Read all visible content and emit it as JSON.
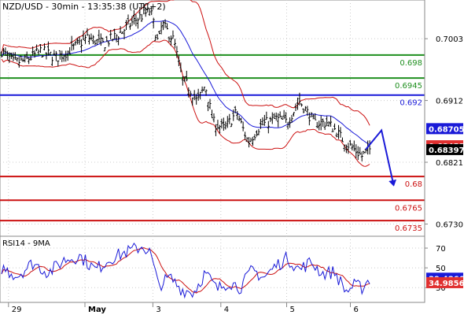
{
  "chart_data": [
    {
      "type": "candlestick",
      "title": "NZD/USD - 30min - 13:35:38 (UTC+2)",
      "ylim": [
        0.6712,
        0.706
      ],
      "yticks": [
        {
          "label": "0.7003",
          "value": 0.7003
        },
        {
          "label": "0.6912",
          "value": 0.6912
        },
        {
          "label": "0.6821",
          "value": 0.6821
        },
        {
          "label": "0.6730",
          "value": 0.673
        }
      ],
      "xticks": [
        {
          "label": "29",
          "pos": 0.02
        },
        {
          "label": "May",
          "pos": 0.2
        },
        {
          "label": "3",
          "pos": 0.36
        },
        {
          "label": "4",
          "pos": 0.52
        },
        {
          "label": "5",
          "pos": 0.675
        },
        {
          "label": "6",
          "pos": 0.825
        }
      ],
      "resistance_levels": [
        {
          "label": "0.698",
          "value": 0.6979,
          "color": "#1f8f1f"
        },
        {
          "label": "0.6945",
          "value": 0.6945,
          "color": "#1f8f1f"
        },
        {
          "label": "0.692",
          "value": 0.692,
          "color": "#1a1ad8"
        }
      ],
      "support_levels": [
        {
          "label": "0.68",
          "value": 0.68,
          "color": "#cc1111"
        },
        {
          "label": "0.6765",
          "value": 0.6765,
          "color": "#cc1111"
        },
        {
          "label": "0.6735",
          "value": 0.6735,
          "color": "#cc1111"
        }
      ],
      "price_badges": [
        {
          "label": "0.68705",
          "value": 0.68705,
          "bg": "#1a1ad8"
        },
        {
          "label": "0.68453",
          "value": 0.68453,
          "bg": "#e03030"
        },
        {
          "label": "0.68397",
          "value": 0.68397,
          "bg": "#000000"
        }
      ],
      "close_keypoints": [
        {
          "t": 0.0,
          "v": 0.6985
        },
        {
          "t": 0.03,
          "v": 0.6968
        },
        {
          "t": 0.06,
          "v": 0.697
        },
        {
          "t": 0.1,
          "v": 0.6985
        },
        {
          "t": 0.14,
          "v": 0.6975
        },
        {
          "t": 0.18,
          "v": 0.6988
        },
        {
          "t": 0.22,
          "v": 0.7005
        },
        {
          "t": 0.26,
          "v": 0.6995
        },
        {
          "t": 0.3,
          "v": 0.701
        },
        {
          "t": 0.34,
          "v": 0.703
        },
        {
          "t": 0.38,
          "v": 0.7045
        },
        {
          "t": 0.4,
          "v": 0.6995
        },
        {
          "t": 0.41,
          "v": 0.7025
        },
        {
          "t": 0.44,
          "v": 0.7
        },
        {
          "t": 0.46,
          "v": 0.6945
        },
        {
          "t": 0.48,
          "v": 0.693
        },
        {
          "t": 0.5,
          "v": 0.691
        },
        {
          "t": 0.52,
          "v": 0.6935
        },
        {
          "t": 0.54,
          "v": 0.688
        },
        {
          "t": 0.57,
          "v": 0.687
        },
        {
          "t": 0.6,
          "v": 0.6895
        },
        {
          "t": 0.63,
          "v": 0.685
        },
        {
          "t": 0.66,
          "v": 0.6875
        },
        {
          "t": 0.7,
          "v": 0.6885
        },
        {
          "t": 0.73,
          "v": 0.688
        },
        {
          "t": 0.76,
          "v": 0.6912
        },
        {
          "t": 0.78,
          "v": 0.6895
        },
        {
          "t": 0.8,
          "v": 0.6878
        },
        {
          "t": 0.83,
          "v": 0.688
        },
        {
          "t": 0.85,
          "v": 0.687
        },
        {
          "t": 0.87,
          "v": 0.6855
        },
        {
          "t": 0.9,
          "v": 0.684
        },
        {
          "t": 0.92,
          "v": 0.683
        },
        {
          "t": 0.94,
          "v": 0.684
        }
      ],
      "forecast_path": [
        {
          "t": 0.93,
          "v": 0.684
        },
        {
          "t": 0.97,
          "v": 0.6868
        },
        {
          "t": 1.0,
          "v": 0.679
        }
      ],
      "series": [
        {
          "name": "candles",
          "color": "#000000"
        },
        {
          "name": "moving-average",
          "color": "#1a1ad8"
        },
        {
          "name": "bollinger-bands",
          "color": "#cc1111"
        }
      ]
    },
    {
      "type": "line",
      "title": "RSI14 - 9MA",
      "ylim": [
        15,
        82
      ],
      "yticks": [
        {
          "label": "70",
          "value": 70
        },
        {
          "label": "50",
          "value": 50
        },
        {
          "label": "30",
          "value": 30
        }
      ],
      "value_badges": [
        {
          "label": "39.4866",
          "value": 39.4866,
          "bg": "#1a1ad8"
        },
        {
          "label": "34.9856",
          "value": 34.9856,
          "bg": "#e03030"
        }
      ],
      "rsi_keypoints": [
        {
          "t": 0.0,
          "v": 50
        },
        {
          "t": 0.04,
          "v": 42
        },
        {
          "t": 0.08,
          "v": 55
        },
        {
          "t": 0.12,
          "v": 45
        },
        {
          "t": 0.16,
          "v": 58
        },
        {
          "t": 0.2,
          "v": 62
        },
        {
          "t": 0.24,
          "v": 48
        },
        {
          "t": 0.28,
          "v": 60
        },
        {
          "t": 0.32,
          "v": 66
        },
        {
          "t": 0.36,
          "v": 72
        },
        {
          "t": 0.38,
          "v": 65
        },
        {
          "t": 0.4,
          "v": 32
        },
        {
          "t": 0.43,
          "v": 40
        },
        {
          "t": 0.46,
          "v": 28
        },
        {
          "t": 0.49,
          "v": 25
        },
        {
          "t": 0.52,
          "v": 45
        },
        {
          "t": 0.55,
          "v": 28
        },
        {
          "t": 0.58,
          "v": 36
        },
        {
          "t": 0.61,
          "v": 30
        },
        {
          "t": 0.64,
          "v": 48
        },
        {
          "t": 0.67,
          "v": 40
        },
        {
          "t": 0.7,
          "v": 52
        },
        {
          "t": 0.73,
          "v": 60
        },
        {
          "t": 0.76,
          "v": 48
        },
        {
          "t": 0.79,
          "v": 56
        },
        {
          "t": 0.82,
          "v": 44
        },
        {
          "t": 0.85,
          "v": 46
        },
        {
          "t": 0.88,
          "v": 26
        },
        {
          "t": 0.9,
          "v": 32
        },
        {
          "t": 0.92,
          "v": 30
        },
        {
          "t": 0.94,
          "v": 39
        }
      ],
      "series": [
        {
          "name": "RSI14",
          "color": "#1a1ad8"
        },
        {
          "name": "9MA",
          "color": "#cc1111"
        }
      ]
    }
  ]
}
